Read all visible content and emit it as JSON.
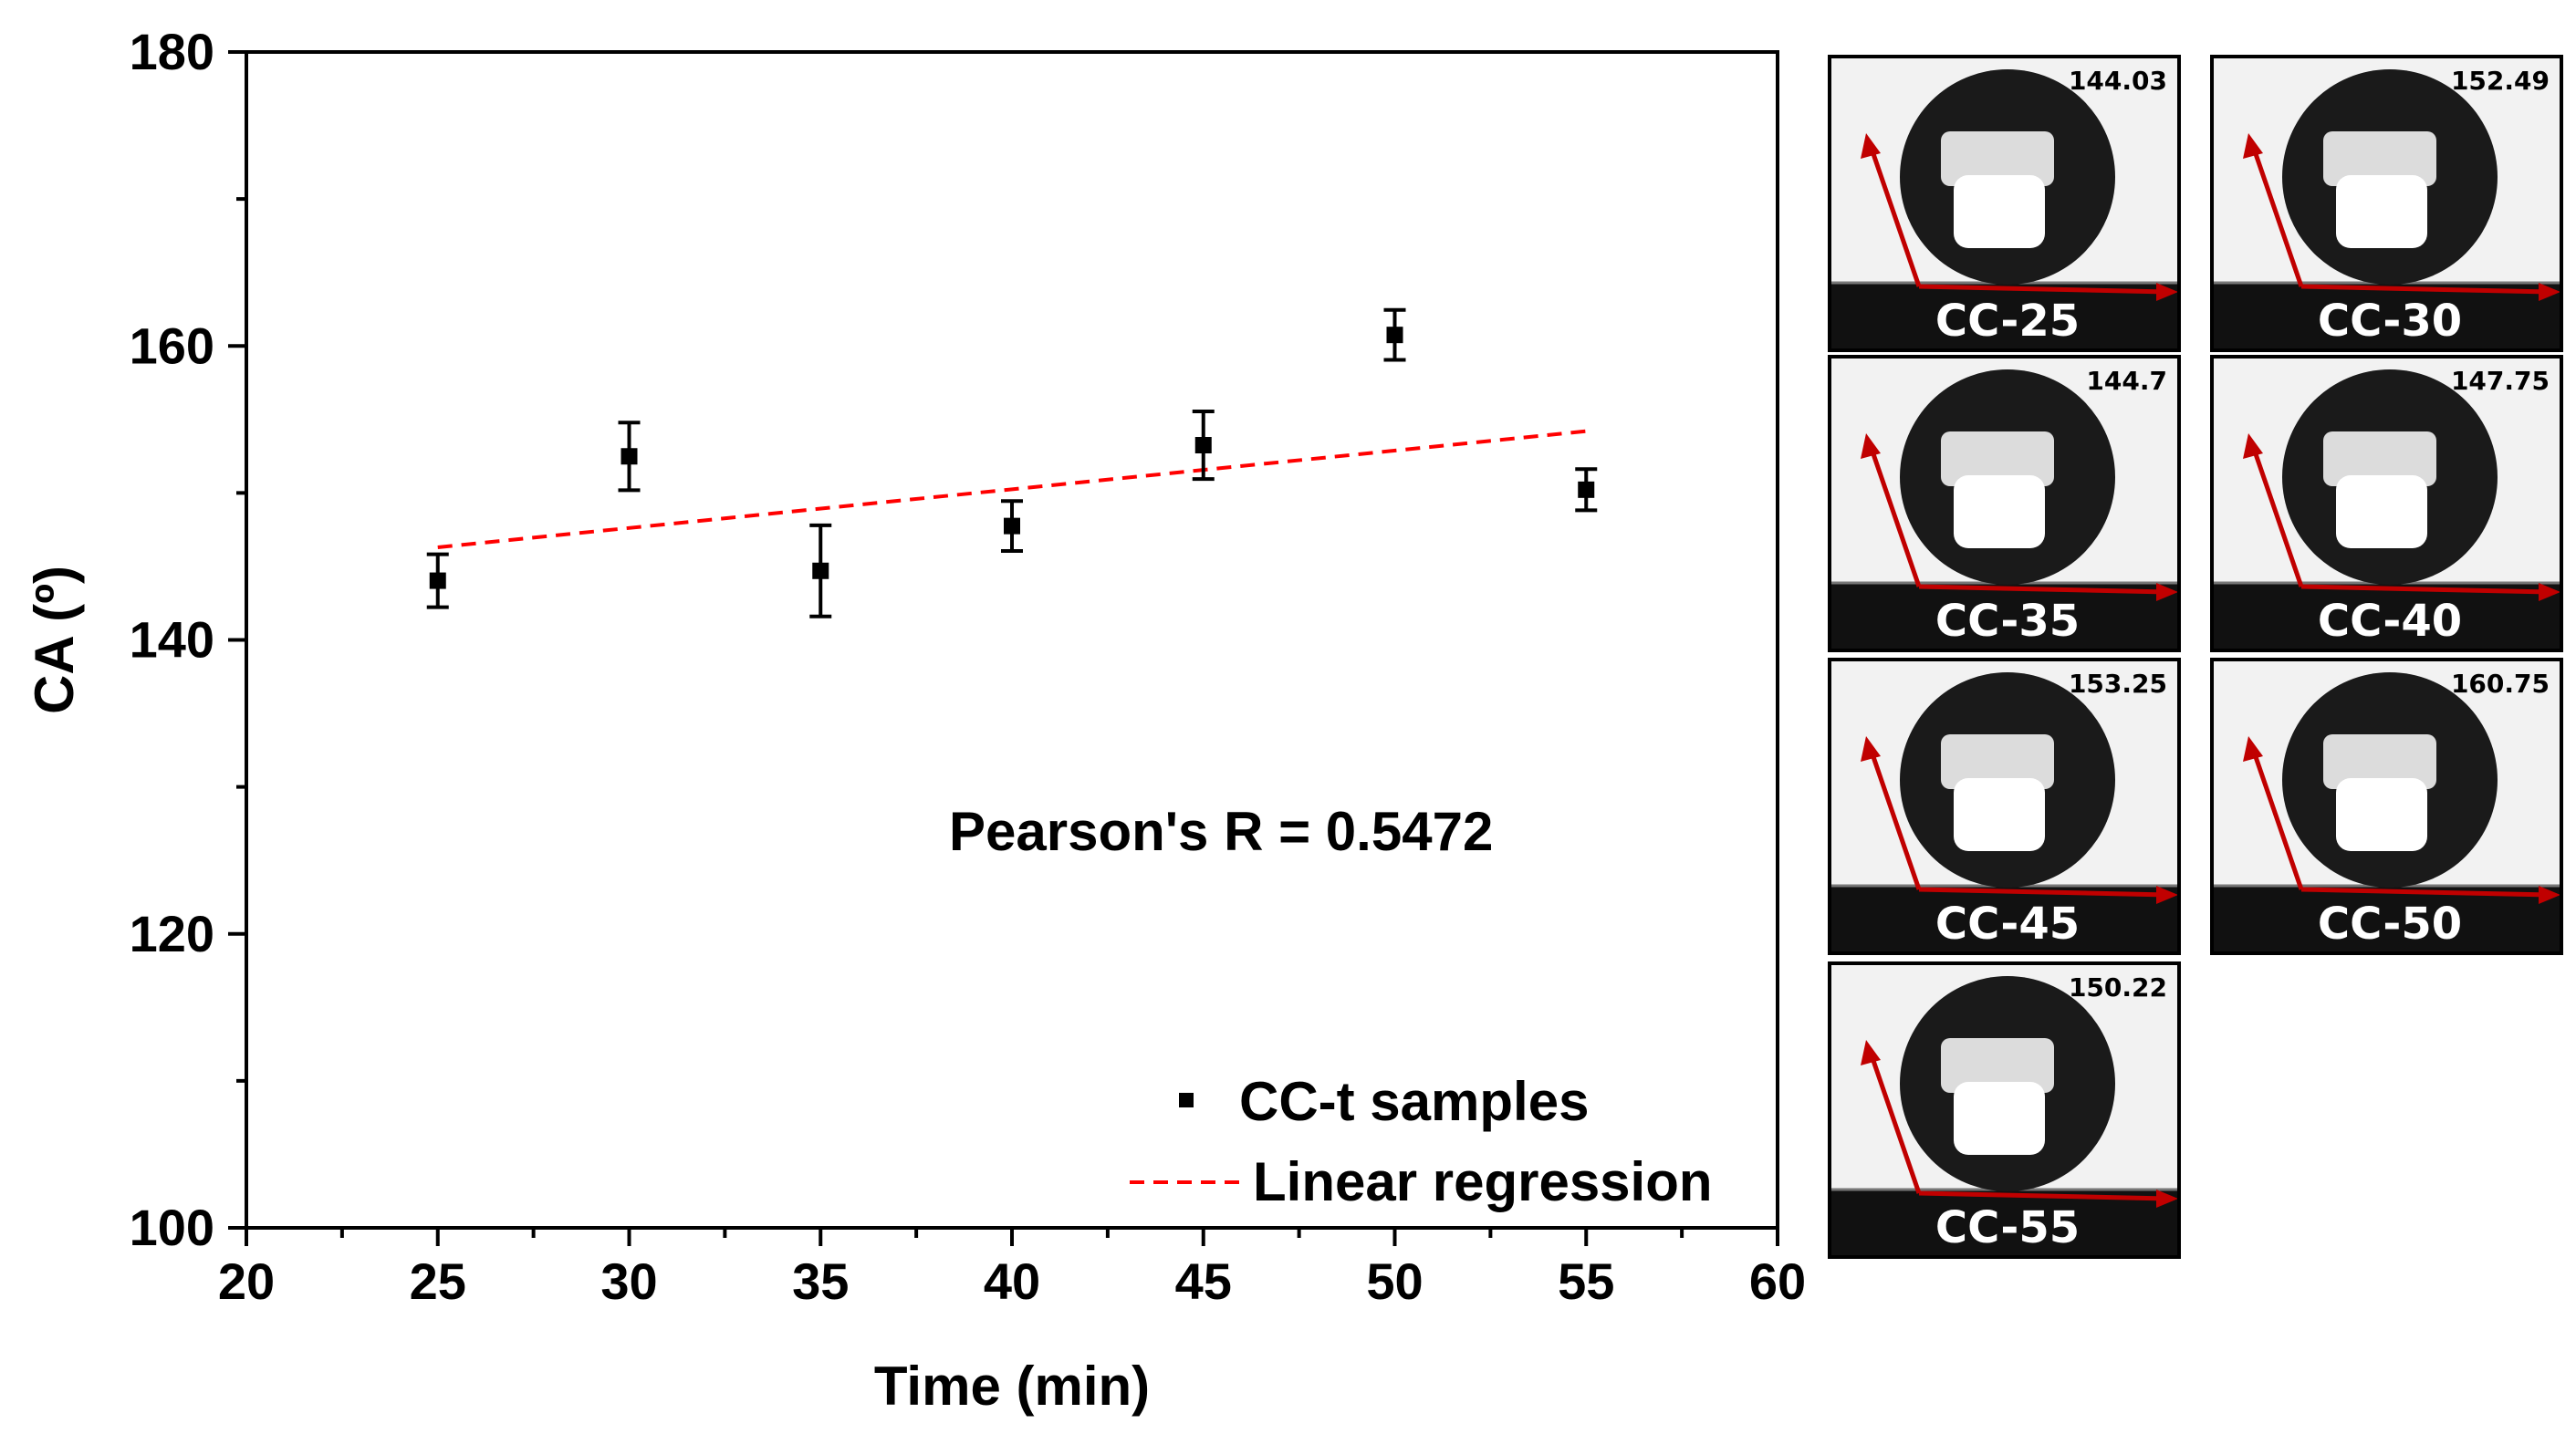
{
  "chart_data": {
    "type": "scatter",
    "xlabel": "Time (min)",
    "ylabel": "CA (º)",
    "xlim": [
      20,
      60
    ],
    "ylim": [
      100,
      180
    ],
    "x_ticks": [
      20,
      25,
      30,
      35,
      40,
      45,
      50,
      55,
      60
    ],
    "y_ticks": [
      100,
      120,
      140,
      160,
      180
    ],
    "grid": false,
    "legend_position": "bottom-right",
    "series": [
      {
        "name": "CC-t samples",
        "marker": "square",
        "color": "#000000",
        "x": [
          25,
          30,
          35,
          40,
          45,
          50,
          55
        ],
        "y": [
          144.03,
          152.49,
          144.7,
          147.75,
          153.25,
          160.75,
          150.22
        ],
        "error": [
          1.8,
          2.3,
          3.1,
          1.7,
          2.3,
          1.7,
          1.4
        ]
      },
      {
        "name": "Linear regression",
        "style": "dashed",
        "color": "#ff0000",
        "x": [
          25,
          55
        ],
        "y": [
          146.3,
          154.2
        ]
      }
    ],
    "annotation": "Pearson's R = 0.5472"
  },
  "panels": [
    {
      "label": "CC-25",
      "value": "144.03"
    },
    {
      "label": "CC-30",
      "value": "152.49"
    },
    {
      "label": "CC-35",
      "value": "144.7"
    },
    {
      "label": "CC-40",
      "value": "147.75"
    },
    {
      "label": "CC-45",
      "value": "153.25"
    },
    {
      "label": "CC-50",
      "value": "160.75"
    },
    {
      "label": "CC-55",
      "value": "150.22"
    }
  ],
  "colors": {
    "arrow": "#c00000",
    "droplet": "#1a1a1a",
    "panel_bg": "#f2f2f2"
  }
}
